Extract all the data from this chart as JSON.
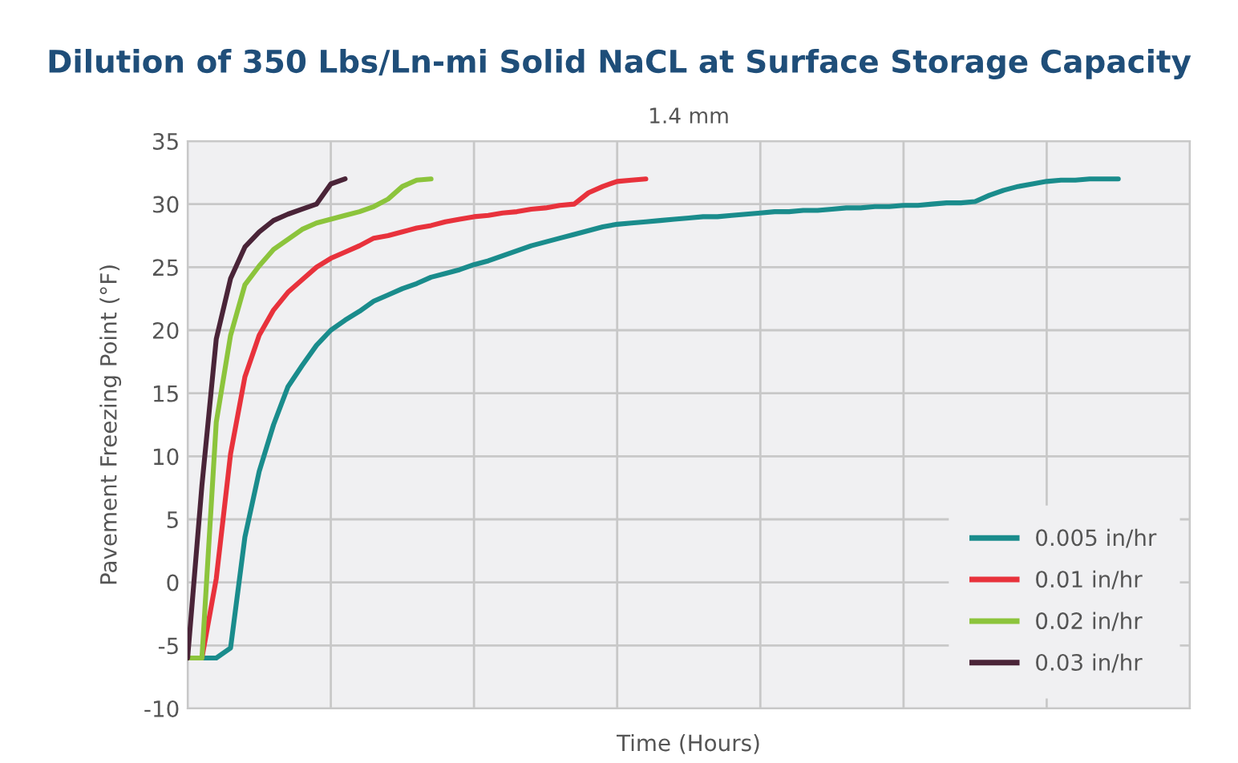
{
  "chart_data": {
    "type": "line",
    "title": "Dilution of 350 Lbs/Ln-mi Solid NaCL at Surface Storage Capacity",
    "subtitle": "1.4 mm",
    "xlabel": "Time (Hours)",
    "ylabel": "Pavement Freezing Point (°F)",
    "categories": [
      null,
      null,
      null,
      null,
      null,
      null,
      null,
      null,
      null,
      null,
      null,
      null,
      null,
      null,
      null,
      null,
      null,
      null,
      null,
      null,
      null,
      null,
      null,
      null,
      null,
      null,
      null,
      null,
      null,
      null,
      null,
      null,
      null,
      null,
      null,
      null,
      null,
      null,
      null,
      null,
      null,
      null,
      null,
      null,
      null,
      null,
      null,
      null,
      null,
      null,
      null,
      null,
      null,
      null,
      null,
      null,
      null,
      null,
      null,
      null,
      null,
      null,
      null,
      null,
      null,
      null,
      null,
      null,
      null,
      null,
      null
    ],
    "ylim": [
      -10,
      35
    ],
    "yticks": [
      -10,
      -5,
      0,
      5,
      10,
      15,
      20,
      25,
      30,
      35
    ],
    "grid": true,
    "legend": "bottom right",
    "line_style": "solid",
    "series": [
      {
        "name": "0.005 in/hr",
        "color": "#1a8c8c",
        "values": [
          -6,
          -6,
          -6,
          -5.2,
          3.6,
          8.8,
          12.5,
          15.5,
          17.2,
          18.8,
          20.0,
          20.8,
          21.5,
          22.3,
          22.8,
          23.3,
          23.7,
          24.2,
          24.5,
          24.8,
          25.2,
          25.5,
          25.9,
          26.3,
          26.7,
          27.0,
          27.3,
          27.6,
          27.9,
          28.2,
          28.4,
          28.5,
          28.6,
          28.7,
          28.8,
          28.9,
          29.0,
          29.0,
          29.1,
          29.2,
          29.3,
          29.4,
          29.4,
          29.5,
          29.5,
          29.6,
          29.7,
          29.7,
          29.8,
          29.8,
          29.9,
          29.9,
          30.0,
          30.1,
          30.1,
          30.2,
          30.7,
          31.1,
          31.4,
          31.6,
          31.8,
          31.9,
          31.9,
          32.0,
          32.0,
          32.0,
          null,
          null,
          null,
          null,
          null
        ]
      },
      {
        "name": "0.01 in/hr",
        "color": "#e8323c",
        "values": [
          -6,
          -6,
          0.3,
          10.2,
          16.3,
          19.6,
          21.6,
          23.0,
          24.0,
          25.0,
          25.7,
          26.2,
          26.7,
          27.3,
          27.5,
          27.8,
          28.1,
          28.3,
          28.6,
          28.8,
          29.0,
          29.1,
          29.3,
          29.4,
          29.6,
          29.7,
          29.9,
          30.0,
          30.9,
          31.4,
          31.8,
          31.9,
          32.0,
          null,
          null,
          null,
          null,
          null,
          null,
          null,
          null,
          null,
          null,
          null,
          null,
          null,
          null,
          null,
          null,
          null,
          null,
          null,
          null,
          null,
          null,
          null,
          null,
          null,
          null,
          null,
          null,
          null,
          null,
          null,
          null,
          null,
          null,
          null,
          null,
          null,
          null
        ]
      },
      {
        "name": "0.02 in/hr",
        "color": "#8cc43c",
        "values": [
          -6,
          -6,
          12.7,
          19.6,
          23.6,
          25.1,
          26.4,
          27.2,
          28.0,
          28.5,
          28.8,
          29.1,
          29.4,
          29.8,
          30.4,
          31.4,
          31.9,
          32.0,
          null,
          null,
          null,
          null,
          null,
          null,
          null,
          null,
          null,
          null,
          null,
          null,
          null,
          null,
          null,
          null,
          null,
          null,
          null,
          null,
          null,
          null,
          null,
          null,
          null,
          null,
          null,
          null,
          null,
          null,
          null,
          null,
          null,
          null,
          null,
          null,
          null,
          null,
          null,
          null,
          null,
          null,
          null,
          null,
          null,
          null,
          null,
          null,
          null,
          null,
          null,
          null,
          null
        ]
      },
      {
        "name": "0.03 in/hr",
        "color": "#4a2438",
        "values": [
          -6,
          7.7,
          19.3,
          24.1,
          26.6,
          27.8,
          28.7,
          29.2,
          29.6,
          30.0,
          31.6,
          32.0,
          null,
          null,
          null,
          null,
          null,
          null,
          null,
          null,
          null,
          null,
          null,
          null,
          null,
          null,
          null,
          null,
          null,
          null,
          null,
          null,
          null,
          null,
          null,
          null,
          null,
          null,
          null,
          null,
          null,
          null,
          null,
          null,
          null,
          null,
          null,
          null,
          null,
          null,
          null,
          null,
          null,
          null,
          null,
          null,
          null,
          null,
          null,
          null,
          null,
          null,
          null,
          null,
          null,
          null,
          null,
          null,
          null,
          null,
          null
        ]
      }
    ]
  }
}
